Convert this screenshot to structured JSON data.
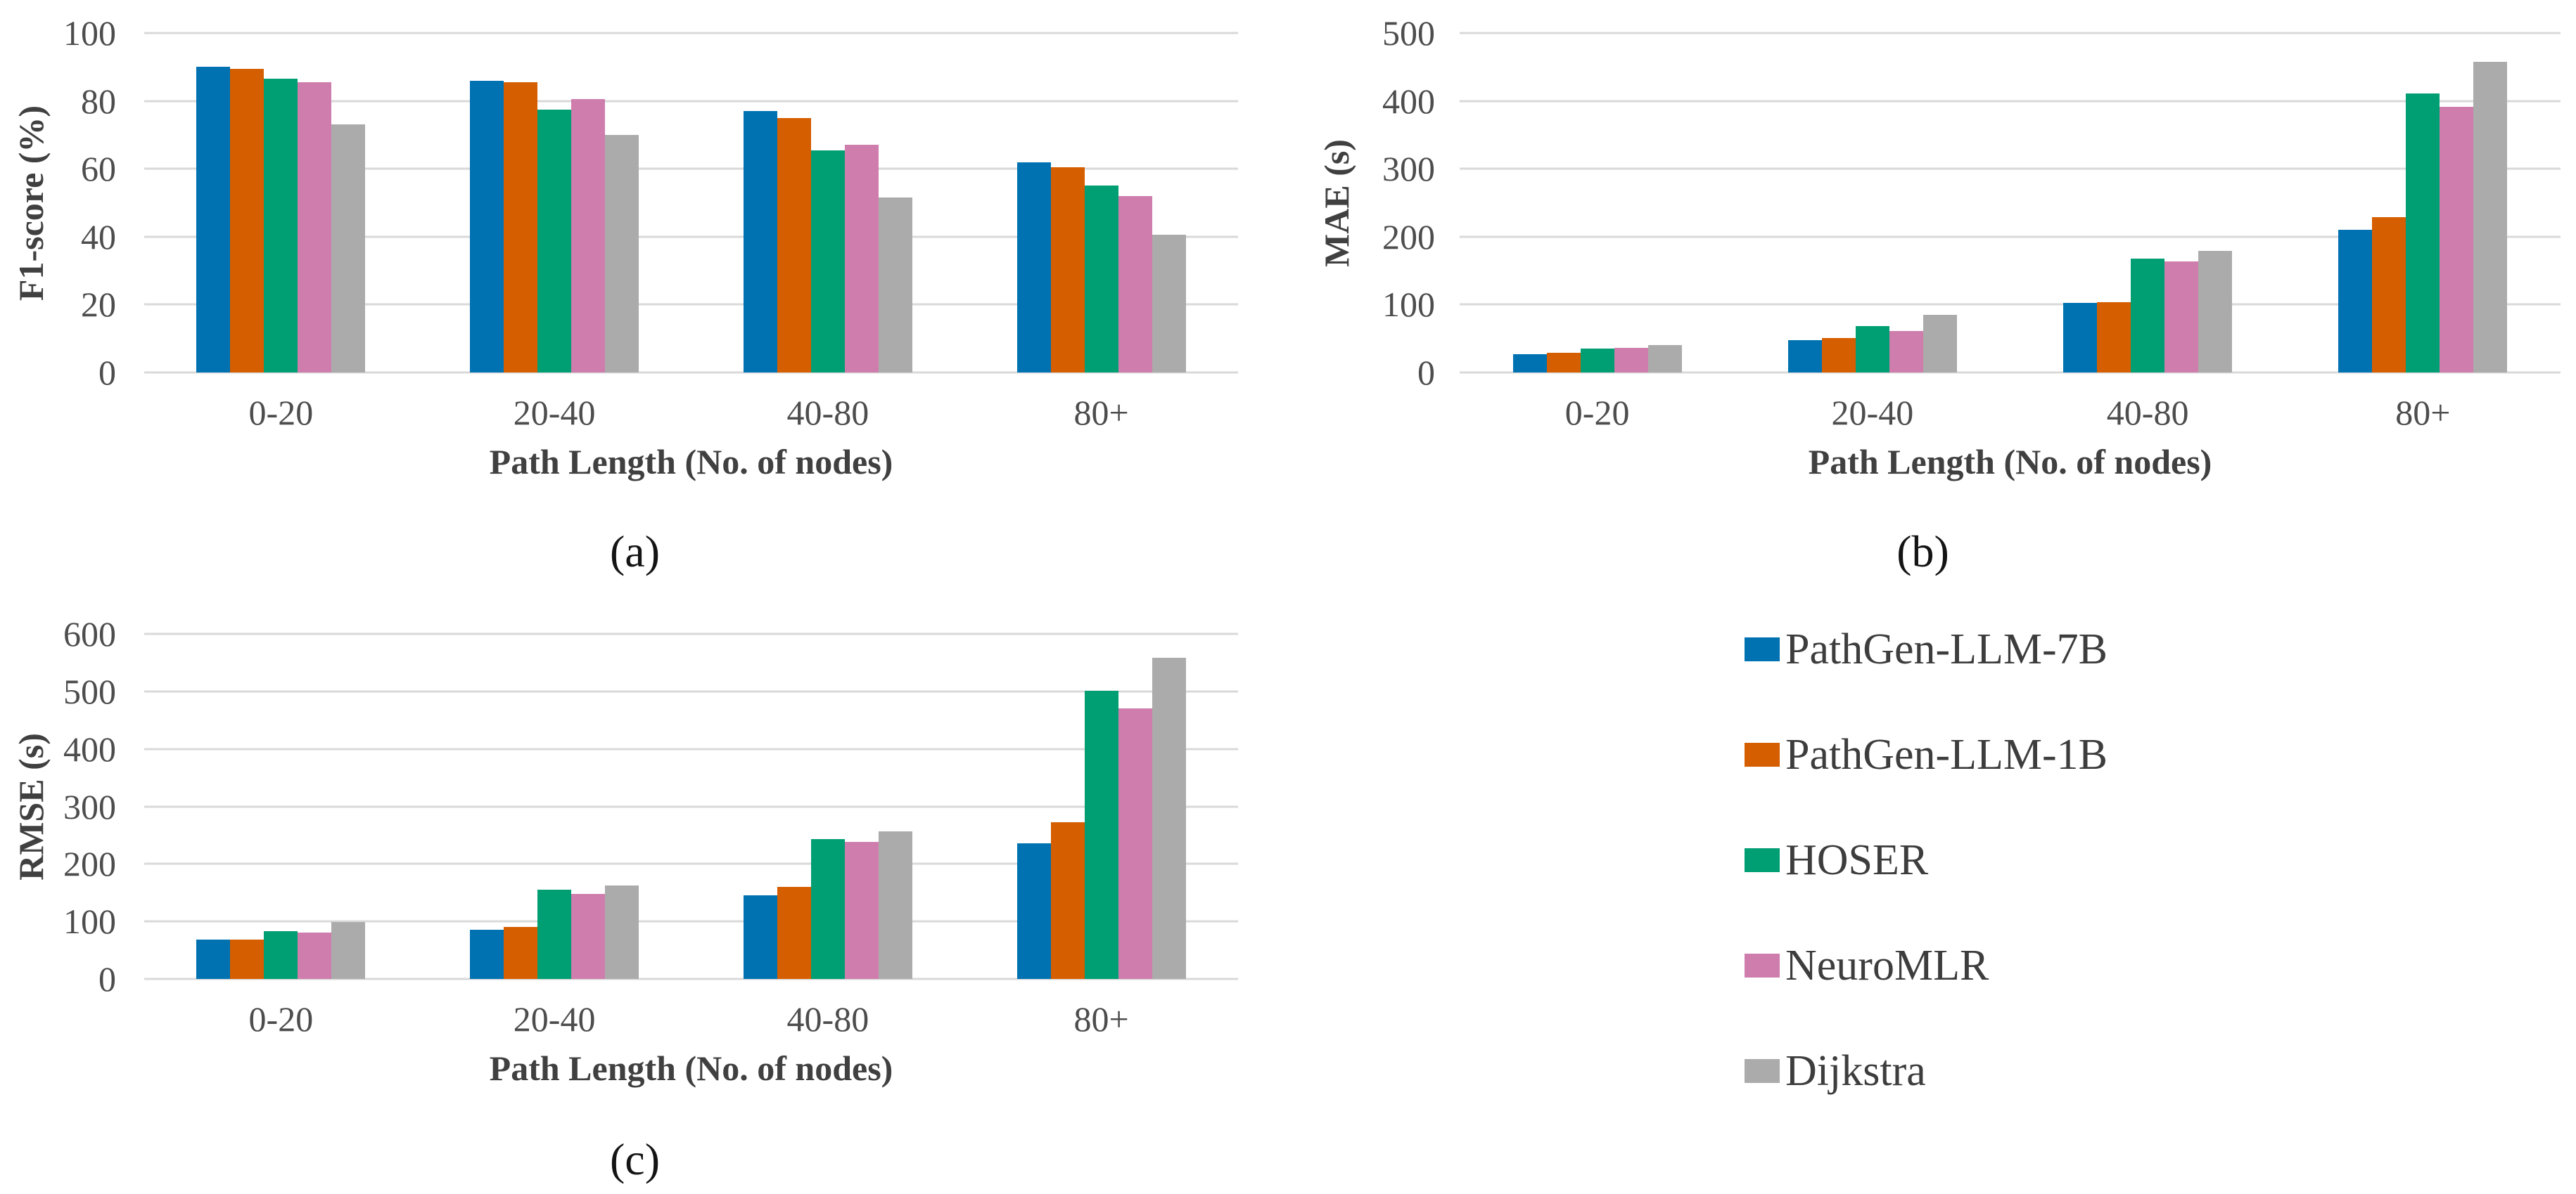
{
  "figure": {
    "description": "Three grouped bar charts comparing path generation methods by path length, with shared legend"
  },
  "legend": {
    "position": "bottom-right",
    "items": [
      {
        "label": "PathGen-LLM-7B",
        "color": "#0072B2"
      },
      {
        "label": "PathGen-LLM-1B",
        "color": "#D55E00"
      },
      {
        "label": "HOSER",
        "color": "#009E73"
      },
      {
        "label": "NeuroMLR",
        "color": "#CE7DAC"
      },
      {
        "label": "Dijkstra",
        "color": "#ABABAB"
      }
    ]
  },
  "chart_data": [
    {
      "id": "a",
      "type": "bar",
      "caption": "(a)",
      "xlabel": "Path Length (No. of nodes)",
      "ylabel": "F1-score (%)",
      "categories": [
        "0-20",
        "20-40",
        "40-80",
        "80+"
      ],
      "ylim": [
        0,
        100
      ],
      "yticks": [
        0,
        20,
        40,
        60,
        80,
        100
      ],
      "grid": true,
      "series": [
        {
          "name": "PathGen-LLM-7B",
          "color": "#0072B2",
          "values": [
            90,
            86,
            77,
            62
          ]
        },
        {
          "name": "PathGen-LLM-1B",
          "color": "#D55E00",
          "values": [
            89.5,
            85.5,
            75,
            60.5
          ]
        },
        {
          "name": "HOSER",
          "color": "#009E73",
          "values": [
            86.5,
            77.5,
            65.5,
            55
          ]
        },
        {
          "name": "NeuroMLR",
          "color": "#CE7DAC",
          "values": [
            85.5,
            80.5,
            67,
            52
          ]
        },
        {
          "name": "Dijkstra",
          "color": "#ABABAB",
          "values": [
            73,
            70,
            51.5,
            40.5
          ]
        }
      ]
    },
    {
      "id": "b",
      "type": "bar",
      "caption": "(b)",
      "xlabel": "Path Length (No. of nodes)",
      "ylabel": "MAE (s)",
      "categories": [
        "0-20",
        "20-40",
        "40-80",
        "80+"
      ],
      "ylim": [
        0,
        500
      ],
      "yticks": [
        0,
        100,
        200,
        300,
        400,
        500
      ],
      "grid": true,
      "series": [
        {
          "name": "PathGen-LLM-7B",
          "color": "#0072B2",
          "values": [
            27,
            48,
            103,
            210
          ]
        },
        {
          "name": "PathGen-LLM-1B",
          "color": "#D55E00",
          "values": [
            29,
            51,
            104,
            229
          ]
        },
        {
          "name": "HOSER",
          "color": "#009E73",
          "values": [
            35,
            68,
            168,
            411
          ]
        },
        {
          "name": "NeuroMLR",
          "color": "#CE7DAC",
          "values": [
            36,
            61,
            164,
            391
          ]
        },
        {
          "name": "Dijkstra",
          "color": "#ABABAB",
          "values": [
            40,
            85,
            179,
            458
          ]
        }
      ]
    },
    {
      "id": "c",
      "type": "bar",
      "caption": "(c)",
      "xlabel": "Path Length (No. of nodes)",
      "ylabel": "RMSE (s)",
      "categories": [
        "0-20",
        "20-40",
        "40-80",
        "80+"
      ],
      "ylim": [
        0,
        600
      ],
      "yticks": [
        0,
        100,
        200,
        300,
        400,
        500,
        600
      ],
      "grid": true,
      "series": [
        {
          "name": "PathGen-LLM-7B",
          "color": "#0072B2",
          "values": [
            68,
            86,
            146,
            236
          ]
        },
        {
          "name": "PathGen-LLM-1B",
          "color": "#D55E00",
          "values": [
            68,
            90,
            160,
            272
          ]
        },
        {
          "name": "HOSER",
          "color": "#009E73",
          "values": [
            83,
            155,
            243,
            501
          ]
        },
        {
          "name": "NeuroMLR",
          "color": "#CE7DAC",
          "values": [
            81,
            148,
            238,
            471
          ]
        },
        {
          "name": "Dijkstra",
          "color": "#ABABAB",
          "values": [
            99,
            163,
            257,
            558
          ]
        }
      ]
    }
  ],
  "styles": {
    "grid_color": "#D9D9D9",
    "tick_text_color": "#4D4D4D",
    "axis_title_color": "#404040",
    "caption_color": "#141414",
    "legend_text_color": "#3D3D3D",
    "background": "#FFFFFF"
  }
}
